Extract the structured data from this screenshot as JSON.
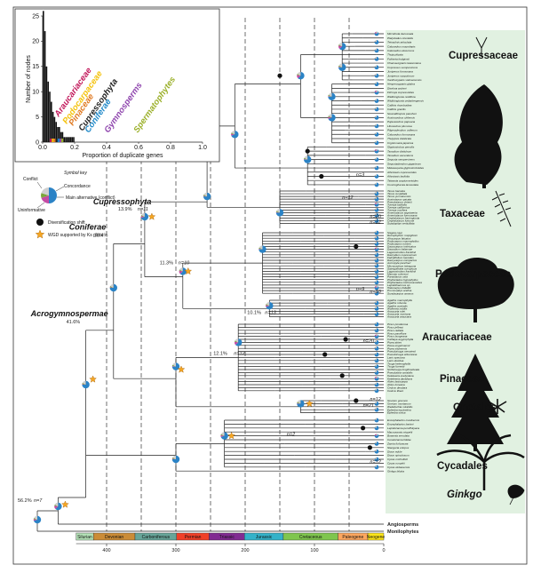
{
  "figure": {
    "families": [
      "Cupressaceae",
      "Taxaceae",
      "Podocarpaceae",
      "Araucariaceae",
      "Pinaceae",
      "Gnetales",
      "Cycadales",
      "Ginkgo"
    ],
    "family_colors": [
      "#dcefdc",
      "#dcefdc",
      "#dcefdc",
      "#dcefdc",
      "#dcefdc",
      "#dcefdc",
      "#dcefdc",
      "#dcefdc"
    ],
    "clades": [
      "Cupressophyta",
      "Coniferae",
      "Acrogymnospermae"
    ],
    "node_labels": [
      "13.9%",
      "18.4%",
      "41.6%",
      "56.2%",
      "11.3%",
      "10.1%",
      "12.1%"
    ],
    "n_labels": [
      "n=11",
      "n=7",
      "n=10",
      "n=13",
      "n=12",
      "n=3",
      "n=12",
      "n=20",
      "n=12",
      "n=9",
      "n=10",
      "n=20",
      "n=12",
      "n=21",
      "n=2",
      "n=12"
    ],
    "outgroups": [
      "Angiosperms",
      "Monilophytes"
    ],
    "cupressaceae_tips": [
      "Microbiota decussata",
      "Platycladus orientalis",
      "Tetraclinis articulata",
      "Calocedrus macrolepis",
      "Calocedrus decurrens",
      "Thuja plicata",
      "Fokienia hodginsii",
      "Chamaecyparis lawsoniana",
      "Cupressus sempervirens",
      "Juniperus formosana",
      "Juniperus scopulorum",
      "Xanthocyparis vietnamensis",
      "Hesperocyparis glabra",
      "Diselma archeri",
      "Fitzroya cupressoides",
      "Widdringtonia nodiflora",
      "Widdringtonia cedarbergensis",
      "Callitris rhomboidea",
      "Callitris gracilis",
      "Neocallitropsis pancheri",
      "Austrocedrus chilensis",
      "Papuacedrus papuana",
      "Libocedrus plumosa",
      "Pilgerodendron uviferum",
      "Calocedrus formosana",
      "Thujopsis dolabrata",
      "Cryptomeria japonica",
      "Glyptostrobus pensilis",
      "Taxodium distichum",
      "Taxodium ascendens",
      "Sequoia sempervirens",
      "Sequoiadendron giganteum",
      "Metasequoia glyptostroboides",
      "Athrotaxis cupressoides",
      "Athrotaxis laxifolia",
      "Taiwania cryptomerioides",
      "Cunninghamia lanceolata"
    ],
    "taxaceae_tips": [
      "Taxus baccata",
      "Taxus cuspidata",
      "Taxus yunnanensis",
      "Austrotaxus spicata",
      "Pseudotaxus chienii",
      "Torreya taxifolia",
      "Torreya californica",
      "Torreya nucifera",
      "Amentotaxus argotaenia",
      "Amentotaxus formosana",
      "Cephalotaxus harringtonia",
      "Cephalotaxus fortunei",
      "Sciadopitys verticillata"
    ],
    "podocarpaceae_tips": [
      "Nageia nagi",
      "Retrophyllum rospigliosii",
      "Afrocarpus falcatus",
      "Podocarpus macrophyllus",
      "Podocarpus rubens",
      "Dacrycarpus imbricatus",
      "Dacrydium balansae",
      "Lagarostrobos franklinii",
      "Dacrydium cupressinum",
      "Falcatifolium taxoides",
      "Dacrycarpus compactus",
      "Acmopyle pancheri",
      "Microcachrys tetragona",
      "Saxegothaea conspicua",
      "Lagarostrobos franklinii",
      "Manoao colensoi",
      "Parasitaxus usta",
      "Phyllocladus hypophyllus",
      "Phyllocladus trichomanoides",
      "Lepidothamnus sp.",
      "Halocarpus bidwillii",
      "Prumnopitys andina",
      "Sundacarpus amarus"
    ],
    "araucariaceae_tips": [
      "Agathis macrophylla",
      "Agathis robusta",
      "Agathis australis",
      "Wollemia nobilis",
      "Araucaria rulei",
      "Araucaria montana",
      "Araucaria araucana"
    ],
    "pinaceae_tips": [
      "Pinus ponderosa",
      "Pinus jeffreyi",
      "Pinus radiata",
      "Pinus parviflora",
      "Pinus bungeana",
      "Cathaya argyrophylla",
      "Picea abies",
      "Picea engelmannii",
      "Picea sitchensis",
      "Pseudotsuga menziesii",
      "Pseudotsuga wilsoniana",
      "Larix speciosa",
      "Larix decidua",
      "Tsuga heterophylla",
      "Tsuga forrestii",
      "Nothotsuga longibracteata",
      "Pseudolarix amabilis",
      "Keteleeria evelyniana",
      "Keteleeria davidiana",
      "Abies lasiocarpa",
      "Abies koreana",
      "Cedrus deodara",
      "Cedrus libani"
    ],
    "gnetales_tips": [
      "Gnetum gnemon",
      "Gnetum montanum",
      "Welwitschia mirabilis",
      "Ephedra equisetina",
      "Ephedra sinica"
    ],
    "cycadales_tips": [
      "Encephalartos manikensis",
      "Encephalartos barteri",
      "Lepidozamia peroffskyana",
      "Macrozamia miquelii",
      "Bowenia serrulata",
      "Ceratozamia hildae",
      "Zamia furfuracea",
      "Stangeria eriopus",
      "Dioon edule",
      "Dioon spinulosum",
      "Cycas micholitzii",
      "Cycas rumphii",
      "Cycas debaoensis",
      "Ginkgo biloba"
    ],
    "periods": [
      "Silurian",
      "Devonian",
      "Carboniferous",
      "Permian",
      "Triassic",
      "Jurassic",
      "Cretaceous",
      "Paleogene",
      "Neogene"
    ],
    "period_colors": [
      "#b3e1b6",
      "#cb8c37",
      "#67a599",
      "#f04028",
      "#812b92",
      "#34b2c9",
      "#7fc64e",
      "#fda75f",
      "#ffe619"
    ],
    "time_ticks": [
      "400",
      "300",
      "200",
      "100",
      "0"
    ],
    "time_labels": [
      "",
      "",
      "",
      "",
      ""
    ]
  },
  "inset": {
    "ylabel": "Number of nodes",
    "xlabel": "Proportion of duplicate genes",
    "yticks": [
      "0",
      "5",
      "10",
      "15",
      "20",
      "25"
    ],
    "xticks": [
      "0.0",
      "0.2",
      "0.4",
      "0.6",
      "0.8",
      "1.0"
    ],
    "labels": [
      "Araucariaceae",
      "Podocarpaceae",
      "Pinaceae",
      "Cupressophyta",
      "Coniferae",
      "Gymnosperms",
      "Spermatophytes"
    ],
    "label_colors": [
      "#c2185b",
      "#f4c20d",
      "#e07b24",
      "#222222",
      "#1e88c8",
      "#8e44ad",
      "#9bb02a"
    ]
  },
  "chart_data": {
    "type": "bar",
    "title": "",
    "xlabel": "Proportion of duplicate genes",
    "ylabel": "Number of nodes",
    "xlim": [
      0,
      1.0
    ],
    "ylim": [
      0,
      25
    ],
    "x": [
      0.005,
      0.015,
      0.025,
      0.035,
      0.045,
      0.055,
      0.065,
      0.075,
      0.085,
      0.095,
      0.105,
      0.115,
      0.125,
      0.135,
      0.145,
      0.155,
      0.165,
      0.175,
      0.185,
      0.195
    ],
    "values": [
      26,
      22,
      15,
      12,
      10,
      8,
      6,
      5,
      4,
      3,
      3,
      2,
      2,
      1,
      1,
      1,
      1,
      1,
      1,
      1
    ]
  },
  "key": {
    "title": "Symbol key",
    "items": [
      "Conflict",
      "Concordance",
      "Main alternative (conflict)",
      "Uninformative",
      "Diversification shift",
      "WGD supported by Ks plots"
    ]
  },
  "colors": {
    "concordance": "#2b83c6",
    "conflict": "#c44ba4",
    "main_alt": "#7aa63a",
    "uninformative": "#cfcfcf",
    "band": "#dcefdc",
    "star": "#f5a623"
  }
}
